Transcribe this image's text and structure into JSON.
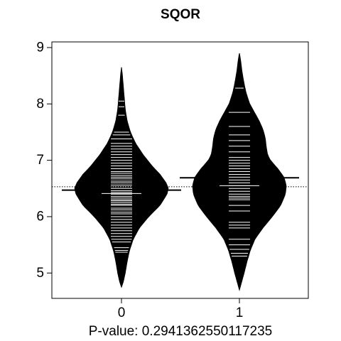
{
  "chart_data": {
    "type": "beanplot",
    "title": "SQOR",
    "xlabel": "P-value: 0.2941362550117235",
    "ylabel": "",
    "categories": [
      "0",
      "1"
    ],
    "yticks": [
      5,
      6,
      7,
      8,
      9
    ],
    "ylim": [
      4.55,
      9.1
    ],
    "overall_mean": 6.53,
    "colors": {
      "bean_fill": "#000000",
      "beanline": "#ffffff",
      "axis": "#000000",
      "background": "#ffffff"
    },
    "beans": [
      {
        "category": "0",
        "mean": 6.47,
        "median": 6.41,
        "ymin": 4.75,
        "ymax": 8.65,
        "density": [
          [
            4.75,
            0.0
          ],
          [
            4.85,
            0.04
          ],
          [
            5.0,
            0.08
          ],
          [
            5.2,
            0.12
          ],
          [
            5.4,
            0.17
          ],
          [
            5.6,
            0.25
          ],
          [
            5.8,
            0.38
          ],
          [
            6.0,
            0.58
          ],
          [
            6.2,
            0.82
          ],
          [
            6.4,
            0.97
          ],
          [
            6.5,
            1.0
          ],
          [
            6.6,
            0.95
          ],
          [
            6.75,
            0.82
          ],
          [
            6.9,
            0.65
          ],
          [
            7.1,
            0.46
          ],
          [
            7.3,
            0.3
          ],
          [
            7.5,
            0.19
          ],
          [
            7.7,
            0.12
          ],
          [
            7.9,
            0.08
          ],
          [
            8.1,
            0.06
          ],
          [
            8.3,
            0.04
          ],
          [
            8.5,
            0.02
          ],
          [
            8.65,
            0.0
          ]
        ],
        "observations": [
          5.37,
          5.4,
          5.45,
          5.55,
          5.6,
          5.65,
          5.7,
          5.75,
          5.8,
          5.85,
          5.9,
          5.95,
          6.0,
          6.05,
          6.08,
          6.12,
          6.15,
          6.2,
          6.22,
          6.25,
          6.28,
          6.3,
          6.33,
          6.36,
          6.4,
          6.43,
          6.46,
          6.5,
          6.53,
          6.56,
          6.6,
          6.63,
          6.67,
          6.7,
          6.73,
          6.77,
          6.8,
          6.85,
          6.9,
          6.95,
          7.0,
          7.05,
          7.1,
          7.15,
          7.2,
          7.25,
          7.3,
          7.38,
          7.45,
          7.5,
          7.8,
          7.95,
          8.05
        ]
      },
      {
        "category": "1",
        "mean": 6.69,
        "median": 6.55,
        "ymin": 4.7,
        "ymax": 8.9,
        "density": [
          [
            4.7,
            0.0
          ],
          [
            4.85,
            0.05
          ],
          [
            5.0,
            0.1
          ],
          [
            5.2,
            0.16
          ],
          [
            5.4,
            0.23
          ],
          [
            5.6,
            0.33
          ],
          [
            5.8,
            0.5
          ],
          [
            6.0,
            0.7
          ],
          [
            6.2,
            0.88
          ],
          [
            6.4,
            0.98
          ],
          [
            6.55,
            1.0
          ],
          [
            6.7,
            0.95
          ],
          [
            6.85,
            0.82
          ],
          [
            7.0,
            0.66
          ],
          [
            7.1,
            0.6
          ],
          [
            7.25,
            0.57
          ],
          [
            7.4,
            0.55
          ],
          [
            7.55,
            0.5
          ],
          [
            7.7,
            0.42
          ],
          [
            7.85,
            0.32
          ],
          [
            8.0,
            0.22
          ],
          [
            8.2,
            0.14
          ],
          [
            8.4,
            0.09
          ],
          [
            8.6,
            0.05
          ],
          [
            8.75,
            0.03
          ],
          [
            8.9,
            0.0
          ]
        ],
        "observations": [
          5.3,
          5.35,
          5.42,
          5.5,
          5.6,
          5.8,
          5.85,
          5.9,
          6.1,
          6.2,
          6.3,
          6.33,
          6.36,
          6.4,
          6.45,
          6.5,
          6.55,
          6.6,
          6.65,
          6.7,
          6.75,
          6.8,
          6.85,
          6.9,
          6.95,
          7.0,
          7.05,
          7.15,
          7.25,
          7.35,
          7.45,
          7.6,
          7.85,
          8.28
        ]
      }
    ]
  }
}
